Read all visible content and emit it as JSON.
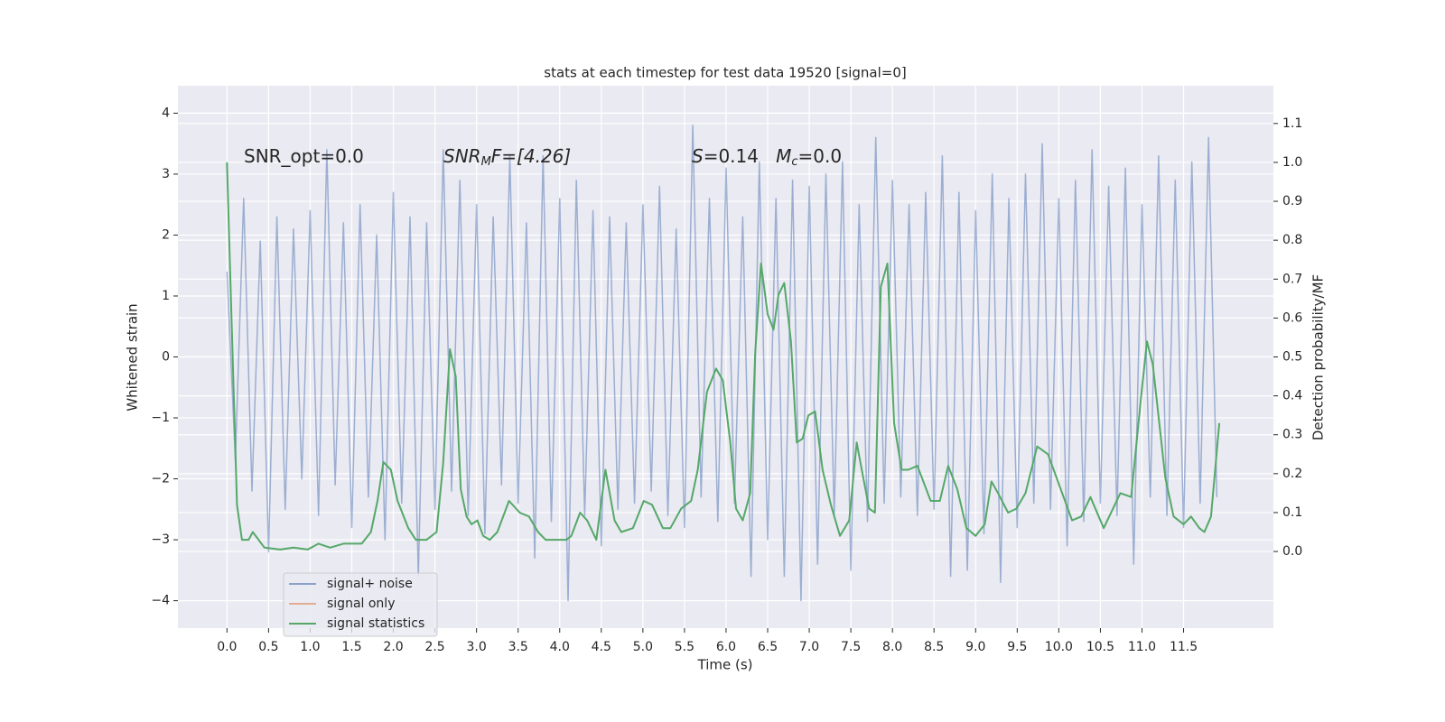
{
  "chart_data": {
    "type": "line",
    "title": "stats at each timestep for test data 19520 [signal=0]",
    "xlabel": "Time (s)",
    "ylabel": "Whitened strain",
    "y2label": "Detection probability/MF",
    "annotations": [
      [
        "SNR_opt=0.0"
      ],
      [
        "SNR",
        "M",
        "F=[4.26]"
      ],
      [
        "S",
        "=0.14   ",
        "M",
        "c",
        "=0.0"
      ]
    ],
    "xlim": [
      -0.59,
      12.58
    ],
    "ylim": [
      -4.45,
      4.45
    ],
    "y2lim": [
      -0.197,
      1.197
    ],
    "xticks": [
      {
        "value": 0,
        "label": "0.0"
      },
      0.5,
      {
        "value": 1,
        "label": "1.0"
      },
      1.5,
      {
        "value": 2,
        "label": "2.0"
      },
      2.5,
      {
        "value": 3,
        "label": "3.0"
      },
      3.5,
      {
        "value": 4,
        "label": "4.0"
      },
      4.5,
      {
        "value": 5,
        "label": "5.0"
      },
      5.5,
      {
        "value": 6,
        "label": "6.0"
      },
      6.5,
      {
        "value": 7,
        "label": "7.0"
      },
      7.5,
      {
        "value": 8,
        "label": "8.0"
      },
      8.5,
      {
        "value": 9,
        "label": "9.0"
      },
      9.5,
      {
        "value": 10,
        "label": "10.0"
      },
      10.5,
      {
        "value": 11,
        "label": "11.0"
      },
      11.5
    ],
    "yticks": [
      {
        "value": -4,
        "label": "−4"
      },
      {
        "value": -3,
        "label": "−3"
      },
      {
        "value": -2,
        "label": "−2"
      },
      {
        "value": -1,
        "label": "−1"
      },
      0,
      1,
      2,
      3,
      4
    ],
    "y2ticks": [
      {
        "value": 0,
        "label": "0.0"
      },
      0.1,
      0.2,
      0.3,
      0.4,
      0.5,
      0.6,
      0.7,
      0.8,
      0.9,
      {
        "value": 1,
        "label": "1.0"
      },
      1.1
    ],
    "grid": true,
    "legend": "lower left",
    "series": [
      {
        "name": "signal+ noise",
        "color": "#4c72b0",
        "x": [
          0.0,
          0.1,
          0.2,
          0.3,
          0.4,
          0.5,
          0.6,
          0.7,
          0.8,
          0.9,
          1.0,
          1.1,
          1.2,
          1.3,
          1.4,
          1.5,
          1.6,
          1.7,
          1.8,
          1.9,
          2.0,
          2.1,
          2.2,
          2.3,
          2.4,
          2.5,
          2.6,
          2.7,
          2.8,
          2.9,
          3.0,
          3.1,
          3.2,
          3.3,
          3.4,
          3.5,
          3.6,
          3.7,
          3.8,
          3.9,
          4.0,
          4.1,
          4.2,
          4.3,
          4.4,
          4.5,
          4.6,
          4.7,
          4.8,
          4.9,
          5.0,
          5.1,
          5.2,
          5.3,
          5.4,
          5.5,
          5.6,
          5.7,
          5.8,
          5.9,
          6.0,
          6.1,
          6.2,
          6.3,
          6.4,
          6.5,
          6.6,
          6.7,
          6.8,
          6.9,
          7.0,
          7.1,
          7.2,
          7.3,
          7.4,
          7.5,
          7.6,
          7.7,
          7.8,
          7.9,
          8.0,
          8.1,
          8.2,
          8.3,
          8.4,
          8.5,
          8.6,
          8.7,
          8.8,
          8.9,
          9.0,
          9.1,
          9.2,
          9.3,
          9.4,
          9.5,
          9.6,
          9.7,
          9.8,
          9.9,
          10.0,
          10.1,
          10.2,
          10.3,
          10.4,
          10.5,
          10.6,
          10.7,
          10.8,
          10.9,
          11.0,
          11.1,
          11.2,
          11.3,
          11.4,
          11.5,
          11.6,
          11.7,
          11.8,
          11.9
        ],
        "values": [
          1.4,
          -1.7,
          2.6,
          -2.2,
          1.9,
          -3.2,
          2.3,
          -2.5,
          2.1,
          -2.0,
          2.4,
          -2.6,
          3.4,
          -2.1,
          2.2,
          -2.8,
          2.5,
          -2.3,
          2.0,
          -3.0,
          2.7,
          -2.4,
          2.3,
          -3.6,
          2.2,
          -2.5,
          3.4,
          -2.2,
          2.9,
          -2.6,
          2.5,
          -2.9,
          2.3,
          -2.1,
          3.3,
          -2.4,
          2.2,
          -3.3,
          3.3,
          -2.7,
          2.6,
          -4.0,
          2.9,
          -2.6,
          2.4,
          -3.1,
          2.3,
          -2.5,
          2.2,
          -2.4,
          2.5,
          -2.2,
          2.8,
          -2.6,
          2.1,
          -2.8,
          3.8,
          -2.3,
          2.6,
          -2.7,
          3.1,
          -2.4,
          2.3,
          -3.6,
          3.2,
          -3.0,
          2.6,
          -3.6,
          2.9,
          -4.0,
          2.8,
          -3.4,
          3.0,
          -2.6,
          3.2,
          -3.5,
          2.5,
          -2.7,
          3.6,
          -2.4,
          2.9,
          -2.3,
          2.5,
          -2.6,
          2.7,
          -2.5,
          3.3,
          -3.6,
          2.7,
          -3.5,
          2.4,
          -2.9,
          3.0,
          -3.7,
          2.6,
          -2.8,
          3.0,
          -2.4,
          3.5,
          -2.5,
          2.6,
          -3.1,
          2.9,
          -2.7,
          3.4,
          -2.4,
          2.8,
          -2.6,
          3.1,
          -3.4,
          2.5,
          -2.3,
          3.3,
          -2.6,
          2.9,
          -2.8,
          3.2,
          -2.4,
          3.6,
          -2.3
        ]
      },
      {
        "name": "signal only",
        "color": "#dd8452",
        "x": [],
        "values": []
      },
      {
        "name": "signal statistics",
        "color": "#55a868",
        "axis": "y2",
        "x": [
          0,
          0.12,
          0.18,
          0.26,
          0.31,
          0.45,
          0.64,
          0.8,
          0.97,
          1.1,
          1.24,
          1.4,
          1.62,
          1.73,
          1.81,
          1.88,
          1.97,
          2.05,
          2.18,
          2.27,
          2.4,
          2.52,
          2.6,
          2.68,
          2.75,
          2.81,
          2.88,
          2.94,
          3.01,
          3.08,
          3.16,
          3.25,
          3.39,
          3.52,
          3.63,
          3.74,
          3.83,
          3.97,
          4.08,
          4.14,
          4.245,
          4.33,
          4.44,
          4.55,
          4.66,
          4.74,
          4.88,
          5.01,
          5.11,
          5.24,
          5.33,
          5.46,
          5.58,
          5.66,
          5.77,
          5.88,
          5.96,
          6.05,
          6.12,
          6.2,
          6.29,
          6.35,
          6.42,
          6.5,
          6.57,
          6.63,
          6.7,
          6.78,
          6.85,
          6.92,
          6.99,
          7.07,
          7.16,
          7.26,
          7.37,
          7.48,
          7.57,
          7.64,
          7.72,
          7.79,
          7.86,
          7.94,
          8.02,
          8.11,
          8.19,
          8.3,
          8.46,
          8.57,
          8.67,
          8.78,
          8.89,
          9.0,
          9.11,
          9.19,
          9.27,
          9.39,
          9.49,
          9.6,
          9.74,
          9.87,
          10.04,
          10.16,
          10.27,
          10.38,
          10.54,
          10.74,
          10.87,
          10.99,
          11.06,
          11.13,
          11.28,
          11.38,
          11.5,
          11.59,
          11.69,
          11.75,
          11.83,
          11.93
        ],
        "values": [
          1.0,
          0.12,
          0.03,
          0.03,
          0.05,
          0.01,
          0.005,
          0.01,
          0.005,
          0.02,
          0.01,
          0.02,
          0.02,
          0.05,
          0.13,
          0.23,
          0.21,
          0.13,
          0.06,
          0.03,
          0.03,
          0.05,
          0.23,
          0.52,
          0.45,
          0.16,
          0.09,
          0.07,
          0.08,
          0.04,
          0.03,
          0.05,
          0.13,
          0.1,
          0.09,
          0.05,
          0.03,
          0.03,
          0.03,
          0.04,
          0.1,
          0.08,
          0.03,
          0.21,
          0.08,
          0.05,
          0.06,
          0.13,
          0.12,
          0.06,
          0.06,
          0.11,
          0.13,
          0.21,
          0.41,
          0.47,
          0.44,
          0.28,
          0.11,
          0.08,
          0.15,
          0.51,
          0.74,
          0.61,
          0.57,
          0.66,
          0.69,
          0.54,
          0.28,
          0.29,
          0.35,
          0.36,
          0.21,
          0.12,
          0.04,
          0.08,
          0.28,
          0.2,
          0.11,
          0.1,
          0.68,
          0.74,
          0.33,
          0.21,
          0.21,
          0.22,
          0.13,
          0.13,
          0.22,
          0.16,
          0.06,
          0.04,
          0.07,
          0.18,
          0.15,
          0.1,
          0.11,
          0.15,
          0.27,
          0.25,
          0.15,
          0.08,
          0.09,
          0.14,
          0.06,
          0.15,
          0.14,
          0.4,
          0.54,
          0.48,
          0.19,
          0.09,
          0.07,
          0.09,
          0.06,
          0.05,
          0.09,
          0.33
        ]
      }
    ]
  }
}
